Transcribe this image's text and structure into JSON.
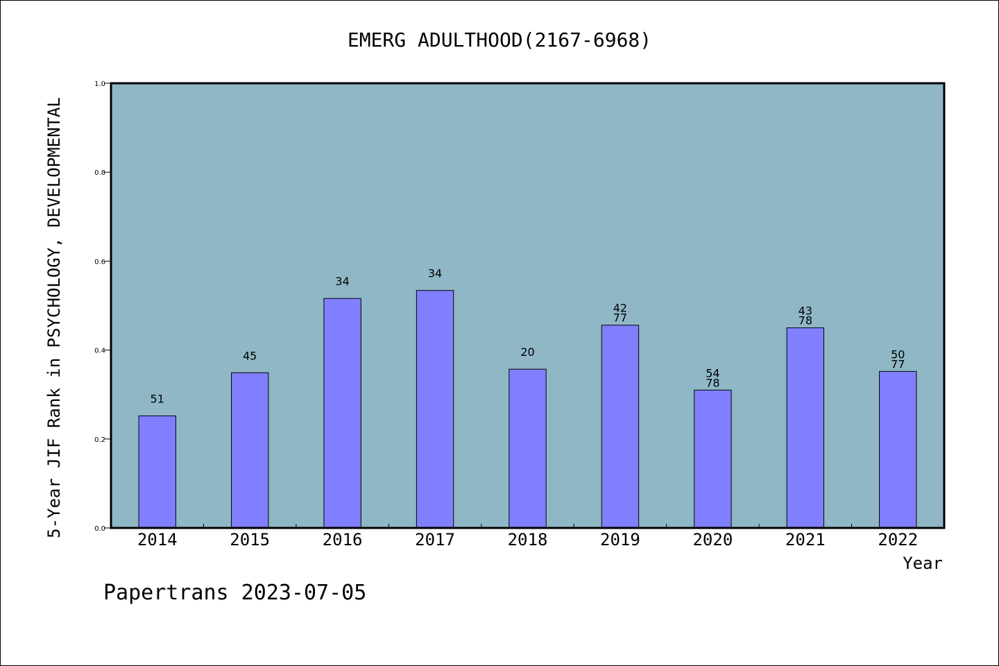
{
  "chart_data": {
    "type": "bar",
    "title": "EMERG ADULTHOOD(2167-6968)",
    "xlabel": "Year",
    "ylabel": "5-Year JIF Rank in PSYCHOLOGY, DEVELOPMENTAL",
    "ylim": [
      0,
      1.0
    ],
    "yticks": [
      "0.0",
      "0.2",
      "0.4",
      "0.6",
      "0.8",
      "1.0"
    ],
    "categories": [
      "2014",
      "2015",
      "2016",
      "2017",
      "2018",
      "2019",
      "2020",
      "2021",
      "2022"
    ],
    "values": [
      0.252,
      0.349,
      0.516,
      0.534,
      0.357,
      0.456,
      0.31,
      0.45,
      0.352
    ],
    "labels": [
      [
        "51"
      ],
      [
        "45"
      ],
      [
        "34"
      ],
      [
        "34"
      ],
      [
        "20"
      ],
      [
        "42",
        "77"
      ],
      [
        "54",
        "78"
      ],
      [
        "43",
        "78"
      ],
      [
        "50",
        "77"
      ]
    ],
    "grid": false,
    "colors": {
      "plot_background": "#8fb7c6",
      "bar": "#8080ff",
      "bar_edge": "#000000"
    }
  },
  "footer": "Papertrans 2023-07-05"
}
